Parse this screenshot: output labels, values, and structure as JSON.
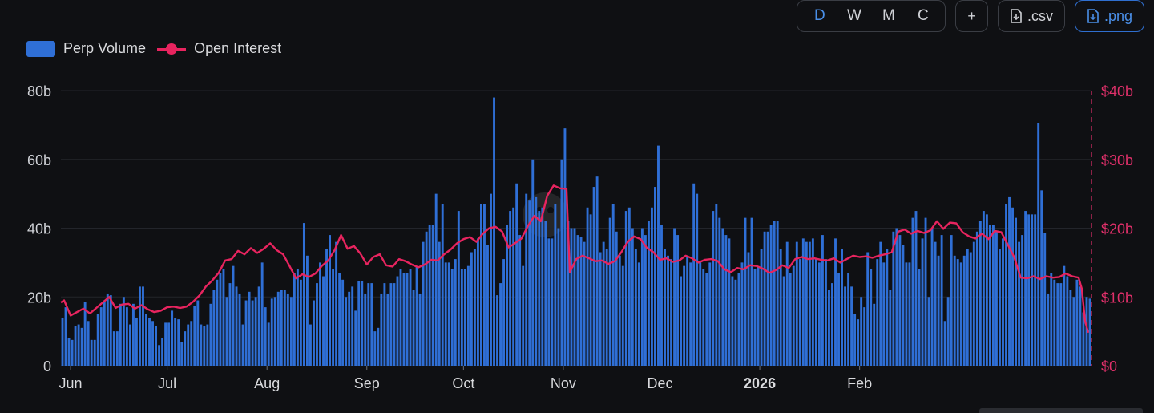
{
  "toolbar": {
    "periods": [
      {
        "label": "D",
        "active": true
      },
      {
        "label": "W",
        "active": false
      },
      {
        "label": "M",
        "active": false
      },
      {
        "label": "C",
        "active": false
      }
    ],
    "add_label": "+",
    "csv_label": ".csv",
    "png_label": ".png"
  },
  "legend": {
    "volume_label": "Perp Volume",
    "oi_label": "Open Interest"
  },
  "colors": {
    "bar": "#2f6fd6",
    "line": "#e8245f",
    "grid": "#23252b",
    "left_axis_text": "#cfd1d6",
    "right_axis_text": "#e0306a"
  },
  "chart_data": {
    "type": "bar+line",
    "title": "",
    "x_ticks": [
      {
        "label": "Jun",
        "day": 3,
        "bold": false
      },
      {
        "label": "Jul",
        "day": 33,
        "bold": false
      },
      {
        "label": "Aug",
        "day": 64,
        "bold": false
      },
      {
        "label": "Sep",
        "day": 95,
        "bold": false
      },
      {
        "label": "Oct",
        "day": 125,
        "bold": false
      },
      {
        "label": "Nov",
        "day": 156,
        "bold": false
      },
      {
        "label": "Dec",
        "day": 186,
        "bold": false
      },
      {
        "label": "2026",
        "day": 217,
        "bold": true
      },
      {
        "label": "Feb",
        "day": 248,
        "bold": false
      }
    ],
    "y_left": {
      "ticks": [
        "0",
        "20b",
        "40b",
        "60b",
        "80b"
      ],
      "range": [
        0,
        80
      ],
      "unit": "b"
    },
    "y_right": {
      "ticks": [
        "$0",
        "$10b",
        "$20b",
        "$30b",
        "$40b"
      ],
      "range": [
        0,
        40
      ],
      "unit": "b"
    },
    "series": [
      {
        "name": "Perp Volume",
        "kind": "bar",
        "axis": "left",
        "values": [
          14,
          17,
          8,
          7.5,
          11.5,
          12,
          11,
          18.5,
          13,
          7.5,
          7.5,
          15,
          17,
          19,
          21,
          20.5,
          10,
          10,
          18,
          20,
          17,
          12,
          18,
          14,
          23,
          23,
          15,
          14,
          13,
          11.5,
          6,
          8,
          12.5,
          12.5,
          16,
          14,
          13.5,
          7,
          10,
          12,
          13,
          17.5,
          19,
          12,
          11.5,
          12,
          18,
          22,
          25,
          27,
          28,
          20,
          24,
          29,
          23,
          21,
          12,
          19,
          21.5,
          19,
          20,
          23,
          30,
          17,
          12.5,
          19.5,
          20,
          21.5,
          22,
          22,
          21,
          20,
          27,
          28,
          25,
          41.5,
          32,
          12,
          19,
          24,
          30,
          26,
          34,
          38,
          28,
          36,
          27,
          25,
          20,
          21.5,
          23,
          16,
          24.5,
          24.5,
          21,
          24,
          24,
          10,
          11,
          21,
          24,
          21,
          24,
          24,
          26,
          28,
          27,
          27,
          28,
          22,
          29,
          21,
          36,
          39,
          41,
          41,
          50,
          36,
          47,
          30,
          30,
          28,
          31,
          45,
          28,
          28,
          29,
          33,
          34,
          37,
          47,
          47,
          35,
          50,
          78,
          20.5,
          24,
          31,
          41,
          45,
          46,
          53,
          38,
          29,
          50,
          48,
          60,
          49,
          45,
          46,
          42,
          37,
          37,
          47,
          40,
          60,
          69,
          42,
          40,
          40,
          38,
          37.5,
          36,
          46,
          44,
          52,
          55,
          33,
          36,
          34,
          43,
          47,
          39,
          32,
          29,
          45,
          46,
          40,
          34,
          30,
          40,
          38,
          42,
          46,
          52,
          64,
          41,
          34,
          32,
          31,
          40,
          38,
          26,
          29,
          32,
          30,
          53,
          50,
          30,
          28,
          27,
          30,
          45,
          47,
          43,
          40,
          38,
          37,
          26,
          25,
          27,
          30,
          43,
          33,
          43,
          28,
          29,
          34,
          39,
          39,
          41,
          42,
          42,
          34,
          26,
          36,
          27,
          29,
          36,
          31,
          37,
          36,
          36,
          37,
          31,
          30,
          38,
          31,
          22,
          24,
          37,
          27,
          34,
          23,
          27,
          23,
          15,
          13.5,
          20,
          17,
          33,
          28,
          18,
          31,
          36,
          30,
          34,
          22,
          39,
          40,
          38,
          35,
          30,
          30,
          43,
          45,
          28,
          37,
          43,
          20,
          40,
          36,
          32,
          38,
          13,
          20,
          38,
          32,
          31,
          30,
          32,
          34,
          33,
          36,
          39,
          42,
          45,
          44,
          41,
          41,
          39,
          34,
          37,
          47,
          49,
          46,
          43,
          36,
          38,
          45,
          44,
          44,
          44,
          70.5,
          51,
          38.5,
          21,
          27,
          25,
          24,
          24,
          29,
          26,
          22,
          20,
          25,
          23,
          15.5,
          20,
          19.5,
          19,
          18
        ]
      },
      {
        "name": "Open Interest",
        "kind": "line",
        "axis": "right",
        "points": [
          [
            0,
            9.2
          ],
          [
            1,
            9.5
          ],
          [
            3,
            7.3
          ],
          [
            5,
            7.8
          ],
          [
            7,
            8.3
          ],
          [
            9,
            7.6
          ],
          [
            11,
            8.4
          ],
          [
            13,
            9.2
          ],
          [
            15,
            10
          ],
          [
            17,
            8.4
          ],
          [
            19,
            8.9
          ],
          [
            21,
            9
          ],
          [
            23,
            8.3
          ],
          [
            25,
            8.8
          ],
          [
            27,
            8.2
          ],
          [
            29,
            7.8
          ],
          [
            31,
            8
          ],
          [
            33,
            8.5
          ],
          [
            35,
            8.6
          ],
          [
            37,
            8.4
          ],
          [
            39,
            8.6
          ],
          [
            41,
            9.3
          ],
          [
            43,
            10.2
          ],
          [
            45,
            11.5
          ],
          [
            47,
            12.4
          ],
          [
            49,
            13.5
          ],
          [
            51,
            15.3
          ],
          [
            53,
            15.5
          ],
          [
            55,
            16.7
          ],
          [
            57,
            16.2
          ],
          [
            59,
            17.1
          ],
          [
            61,
            16.4
          ],
          [
            63,
            17
          ],
          [
            65,
            17.8
          ],
          [
            67,
            16.8
          ],
          [
            69,
            16.2
          ],
          [
            71,
            14.5
          ],
          [
            73,
            12.7
          ],
          [
            75,
            13.3
          ],
          [
            77,
            12.9
          ],
          [
            79,
            13.4
          ],
          [
            81,
            14.5
          ],
          [
            83,
            15.3
          ],
          [
            85,
            16.8
          ],
          [
            87,
            19
          ],
          [
            89,
            17
          ],
          [
            91,
            17.4
          ],
          [
            93,
            16.3
          ],
          [
            95,
            14.7
          ],
          [
            97,
            15.8
          ],
          [
            99,
            16.2
          ],
          [
            101,
            14.6
          ],
          [
            103,
            14.4
          ],
          [
            105,
            15.5
          ],
          [
            107,
            15.2
          ],
          [
            109,
            14.7
          ],
          [
            111,
            14.3
          ],
          [
            113,
            14.7
          ],
          [
            115,
            15.4
          ],
          [
            117,
            15.3
          ],
          [
            119,
            16.2
          ],
          [
            121,
            16.9
          ],
          [
            123,
            17.8
          ],
          [
            125,
            18.4
          ],
          [
            127,
            18.7
          ],
          [
            129,
            18
          ],
          [
            131,
            19.2
          ],
          [
            133,
            20
          ],
          [
            135,
            20.2
          ],
          [
            137,
            19.5
          ],
          [
            139,
            17.2
          ],
          [
            141,
            17.8
          ],
          [
            143,
            18.5
          ],
          [
            145,
            20.3
          ],
          [
            147,
            21.8
          ],
          [
            149,
            21
          ],
          [
            151,
            24.7
          ],
          [
            153,
            26.2
          ],
          [
            155,
            25.8
          ],
          [
            157,
            25.7
          ],
          [
            158,
            13.6
          ],
          [
            160,
            15.5
          ],
          [
            162,
            16
          ],
          [
            164,
            15.6
          ],
          [
            166,
            15.2
          ],
          [
            168,
            15.3
          ],
          [
            170,
            14.8
          ],
          [
            172,
            15.2
          ],
          [
            174,
            16.5
          ],
          [
            176,
            18
          ],
          [
            178,
            18.8
          ],
          [
            180,
            18.4
          ],
          [
            182,
            17.1
          ],
          [
            184,
            16.5
          ],
          [
            186,
            15.4
          ],
          [
            188,
            15.6
          ],
          [
            190,
            15.1
          ],
          [
            192,
            15.3
          ],
          [
            194,
            16
          ],
          [
            196,
            15.6
          ],
          [
            198,
            15
          ],
          [
            200,
            15.4
          ],
          [
            202,
            15.5
          ],
          [
            204,
            15.2
          ],
          [
            206,
            14
          ],
          [
            208,
            13.6
          ],
          [
            210,
            14.2
          ],
          [
            212,
            14
          ],
          [
            214,
            14.6
          ],
          [
            216,
            14.5
          ],
          [
            218,
            14.1
          ],
          [
            220,
            13.5
          ],
          [
            222,
            13.9
          ],
          [
            224,
            14.6
          ],
          [
            226,
            14.2
          ],
          [
            228,
            15.5
          ],
          [
            230,
            15.8
          ],
          [
            232,
            15.5
          ],
          [
            234,
            15.6
          ],
          [
            236,
            15.4
          ],
          [
            238,
            15.3
          ],
          [
            240,
            15.6
          ],
          [
            242,
            15
          ],
          [
            244,
            15.5
          ],
          [
            246,
            16
          ],
          [
            248,
            15.8
          ],
          [
            250,
            15.9
          ],
          [
            252,
            15.7
          ],
          [
            254,
            16
          ],
          [
            256,
            16.2
          ],
          [
            258,
            16.5
          ],
          [
            260,
            19.5
          ],
          [
            262,
            19.8
          ],
          [
            264,
            19.2
          ],
          [
            266,
            19.6
          ],
          [
            268,
            19.3
          ],
          [
            270,
            19.7
          ],
          [
            272,
            21
          ],
          [
            274,
            19.9
          ],
          [
            276,
            20.8
          ],
          [
            278,
            20.7
          ],
          [
            280,
            19.4
          ],
          [
            282,
            18.8
          ],
          [
            284,
            18.5
          ],
          [
            286,
            19.2
          ],
          [
            288,
            18.4
          ],
          [
            290,
            19.6
          ],
          [
            292,
            19.4
          ],
          [
            294,
            17.6
          ],
          [
            296,
            15.8
          ],
          [
            298,
            12.8
          ],
          [
            300,
            12.7
          ],
          [
            302,
            13
          ],
          [
            304,
            12.6
          ],
          [
            306,
            13
          ],
          [
            308,
            12.8
          ],
          [
            310,
            12.9
          ],
          [
            312,
            13.4
          ],
          [
            314,
            13
          ],
          [
            316,
            12.8
          ],
          [
            317,
            11.2
          ],
          [
            318,
            6.5
          ],
          [
            319,
            4.8
          ]
        ]
      }
    ],
    "n_days": 320
  }
}
